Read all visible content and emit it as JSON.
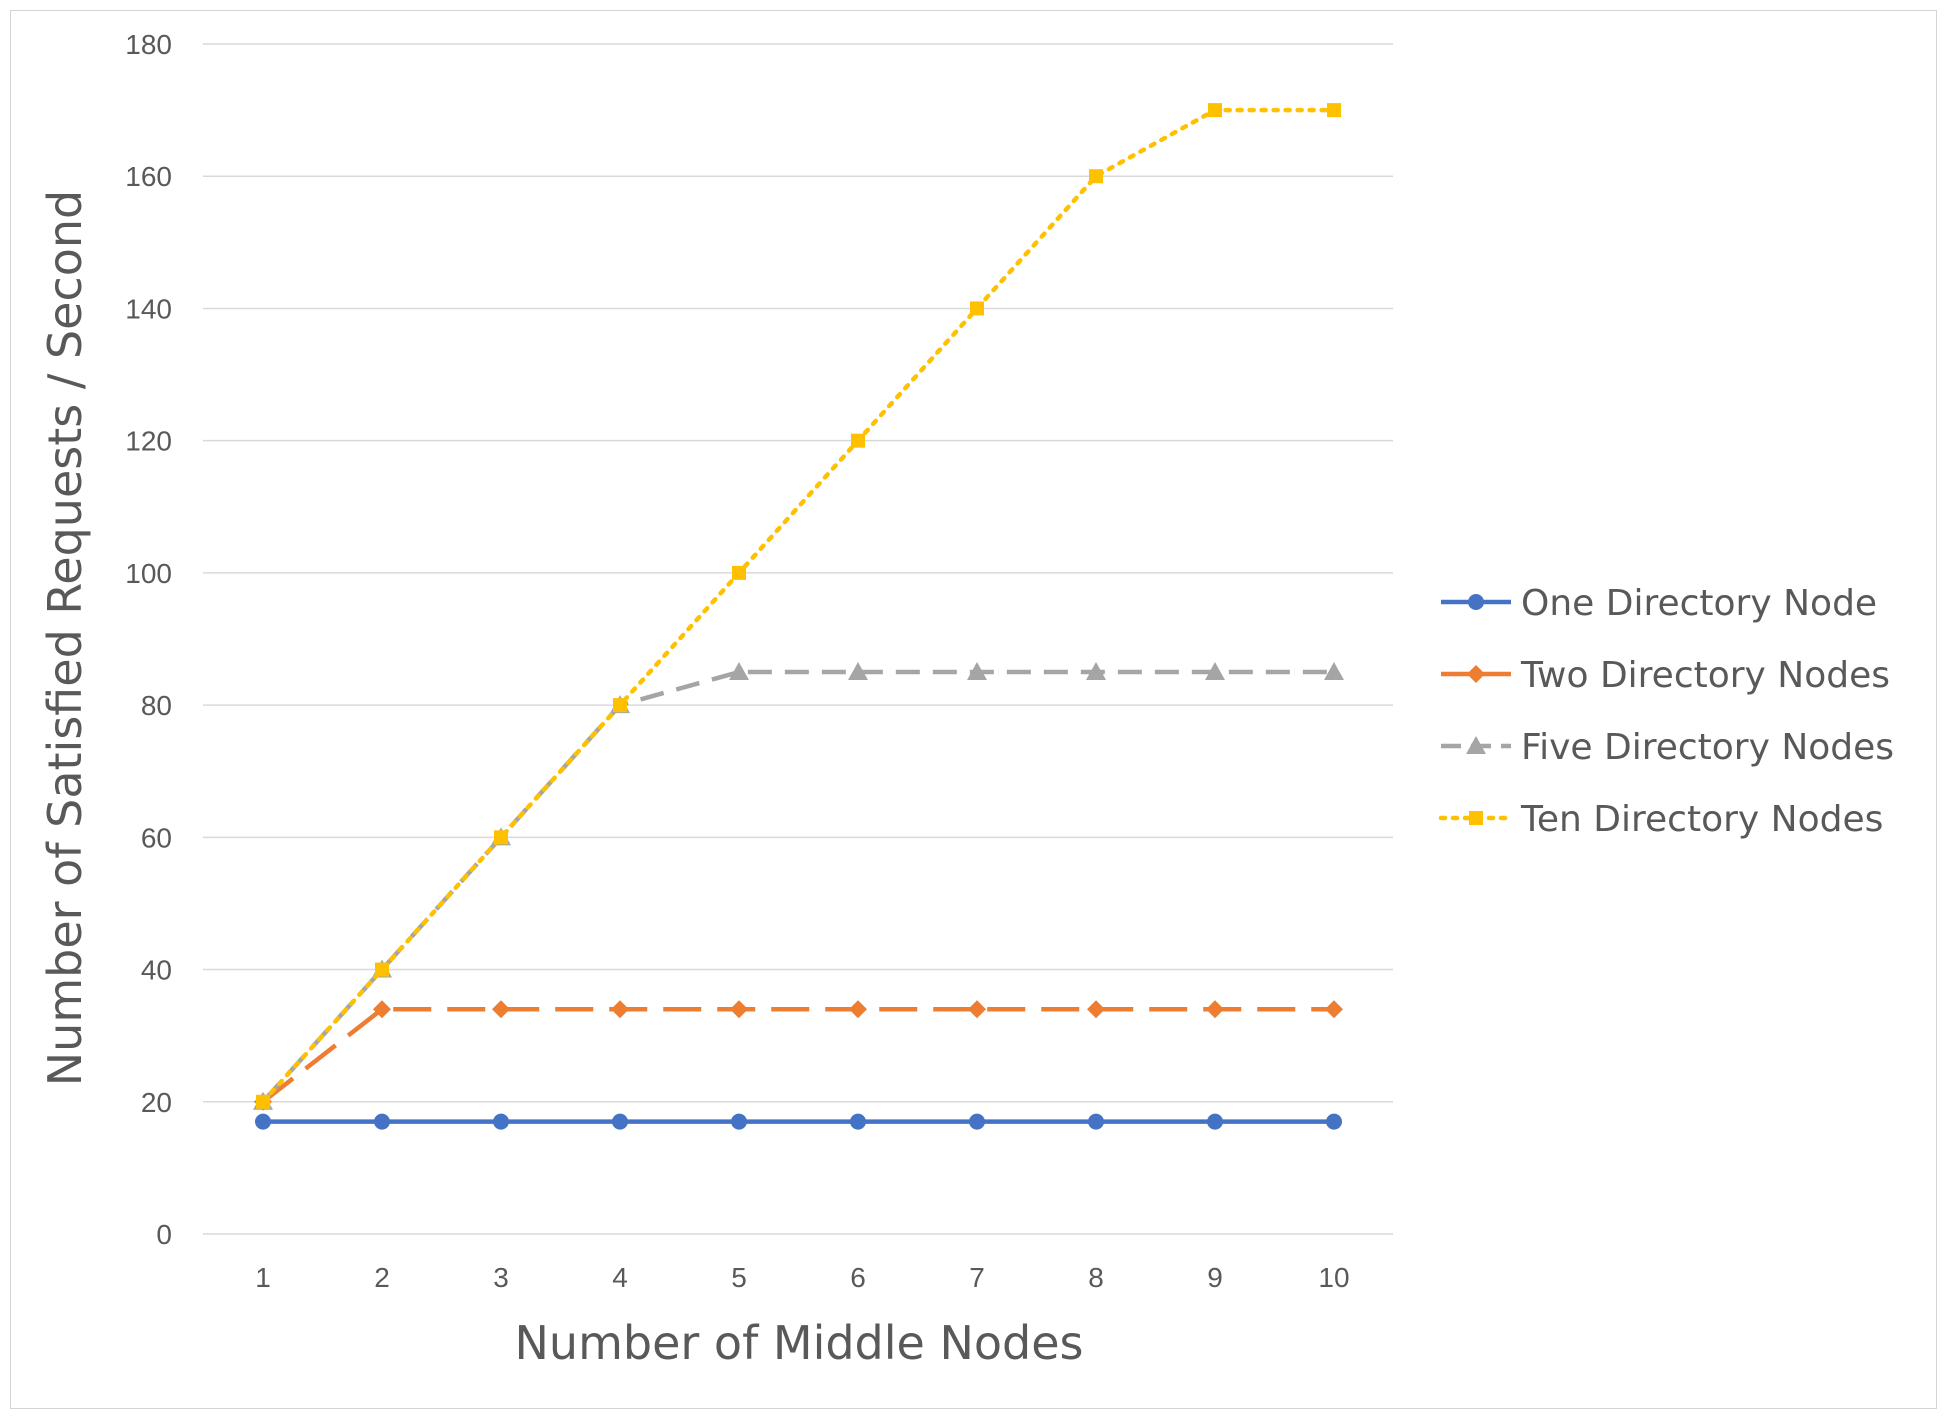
{
  "chart_data": {
    "type": "line",
    "x": [
      1,
      2,
      3,
      4,
      5,
      6,
      7,
      8,
      9,
      10
    ],
    "xlabel": "Number of Middle Nodes",
    "ylabel": "Number of Satisfied Requests / Second",
    "ylim": [
      0,
      180
    ],
    "ytick_step": 20,
    "grid": "horizontal",
    "legend_position": "right",
    "series": [
      {
        "name": "One Directory Node",
        "values": [
          17,
          17,
          17,
          17,
          17,
          17,
          17,
          17,
          17,
          17
        ],
        "color": "#4472C4",
        "line_style": "solid",
        "marker": "circle"
      },
      {
        "name": "Two Directory Nodes",
        "values": [
          20,
          34,
          34,
          34,
          34,
          34,
          34,
          34,
          34,
          34
        ],
        "color": "#ED7D31",
        "line_style": "long-dash",
        "marker": "diamond"
      },
      {
        "name": "Five Directory Nodes",
        "values": [
          20,
          40,
          60,
          80,
          85,
          85,
          85,
          85,
          85,
          85
        ],
        "color": "#A5A5A5",
        "line_style": "dash",
        "marker": "triangle"
      },
      {
        "name": "Ten Directory Nodes",
        "values": [
          20,
          40,
          60,
          80,
          100,
          120,
          140,
          160,
          170,
          170
        ],
        "color": "#FFC000",
        "line_style": "dot",
        "marker": "square"
      }
    ]
  }
}
